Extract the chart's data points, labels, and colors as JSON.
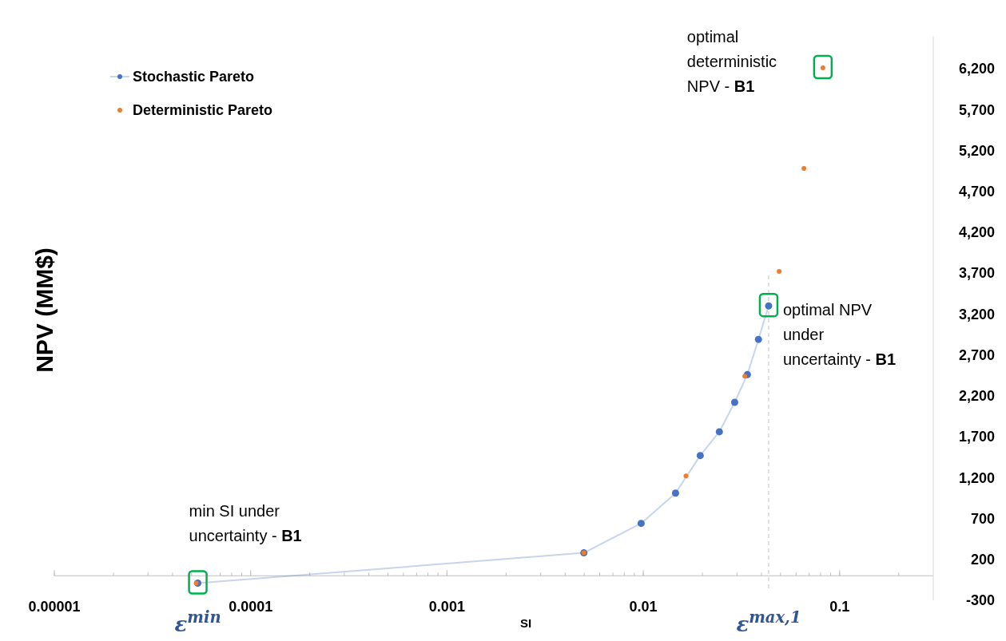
{
  "chart_data": {
    "type": "scatter",
    "xlabel": "SI",
    "ylabel": "NPV (MM$)",
    "log": "x",
    "xlim": [
      1e-05,
      0.3
    ],
    "xticks": [
      {
        "value": 1e-05,
        "label": "0.00001"
      },
      {
        "value": 0.0001,
        "label": "0.0001"
      },
      {
        "value": 0.001,
        "label": "0.001"
      },
      {
        "value": 0.01,
        "label": "0.01"
      },
      {
        "value": 0.1,
        "label": "0.1"
      }
    ],
    "ylim": [
      -300,
      6600
    ],
    "yticks": [
      {
        "value": -300,
        "label": "-300"
      },
      {
        "value": 200,
        "label": "200"
      },
      {
        "value": 700,
        "label": "700"
      },
      {
        "value": 1200,
        "label": "1,200"
      },
      {
        "value": 1700,
        "label": "1,700"
      },
      {
        "value": 2200,
        "label": "2,200"
      },
      {
        "value": 2700,
        "label": "2,700"
      },
      {
        "value": 3200,
        "label": "3,200"
      },
      {
        "value": 3700,
        "label": "3,700"
      },
      {
        "value": 4200,
        "label": "4,200"
      },
      {
        "value": 4700,
        "label": "4,700"
      },
      {
        "value": 5200,
        "label": "5,200"
      },
      {
        "value": 5700,
        "label": "5,700"
      },
      {
        "value": 6200,
        "label": "6,200"
      }
    ],
    "grid": false,
    "legend": "top left",
    "marker": "circle",
    "series": [
      {
        "name": "Stochastic Pareto",
        "type": "line",
        "line_style": "solid",
        "color": "#4472c4",
        "x": [
          5.38e-05,
          0.00498,
          0.00975,
          0.0146,
          0.0195,
          0.0244,
          0.0292,
          0.0339,
          0.0386,
          0.0435
        ],
        "values": [
          -90,
          280,
          640,
          1010,
          1470,
          1760,
          2120,
          2460,
          2890,
          3300
        ]
      },
      {
        "name": "Deterministic Pareto",
        "color": "#ed7d31",
        "x": [
          5.28e-05,
          0.00498,
          0.0165,
          0.0329,
          0.0492,
          0.0658,
          0.0822
        ],
        "values": [
          -90,
          280,
          1220,
          2440,
          3720,
          4980,
          6210
        ]
      }
    ],
    "ref_lines": [
      {
        "axis": "x",
        "value": 0.0435,
        "color": "#bfbfbf",
        "line_style": "dashed"
      }
    ],
    "annotations": [
      {
        "text": "min SI under uncertainty - B1",
        "x": 5.38e-05,
        "y": -90
      },
      {
        "text": "optimal NPV under uncertainty - B1",
        "x": 0.0435,
        "y": 3300
      },
      {
        "text": "optimal deterministic NPV - B1",
        "x": 0.0822,
        "y": 6210
      },
      "ε$^{min}$",
      "ε$^{max,1}$"
    ]
  }
}
